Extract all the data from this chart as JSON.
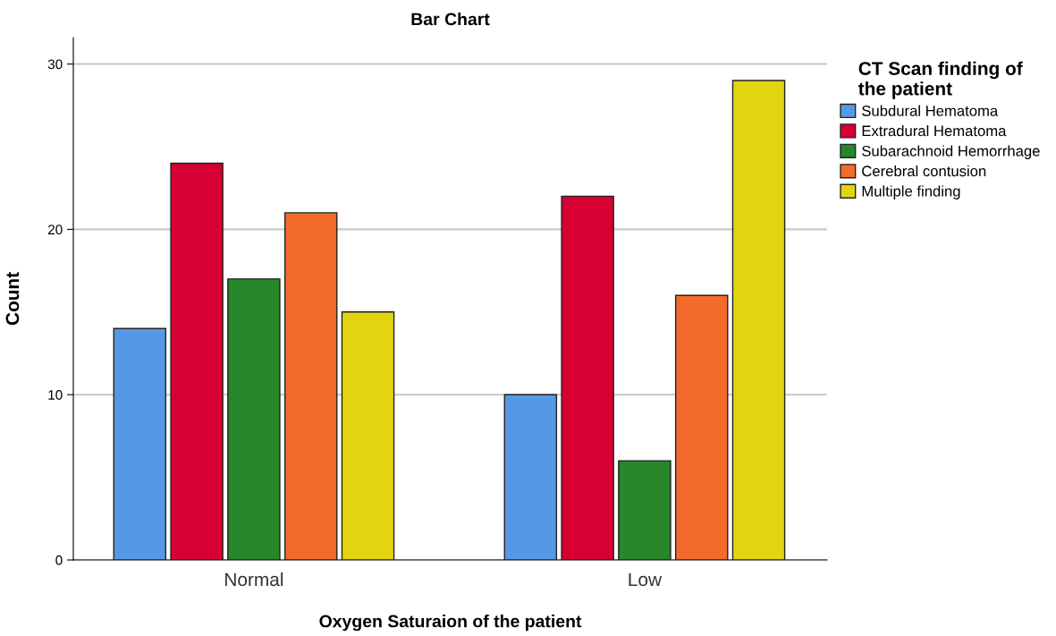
{
  "chart_data": {
    "type": "bar",
    "title": "Bar Chart",
    "xlabel": "Oxygen Saturaion of the patient",
    "ylabel": "Count",
    "legend_title": "CT Scan finding of\nthe patient",
    "categories": [
      "Normal",
      "Low"
    ],
    "series": [
      {
        "name": "Subdural Hematoma",
        "color": "#5599e6",
        "values": [
          14,
          10
        ]
      },
      {
        "name": "Extradural Hematoma",
        "color": "#d70032",
        "values": [
          24,
          22
        ]
      },
      {
        "name": "Subarachnoid Hemorrhage",
        "color": "#27872a",
        "values": [
          17,
          6
        ]
      },
      {
        "name": "Cerebral contusion",
        "color": "#f26a2c",
        "values": [
          21,
          16
        ]
      },
      {
        "name": "Multiple finding",
        "color": "#e2d510",
        "values": [
          15,
          29
        ]
      }
    ],
    "ylim": [
      0,
      31.6
    ],
    "yticks": [
      0,
      10,
      20,
      30
    ],
    "grid": "y",
    "legend": "top right"
  }
}
